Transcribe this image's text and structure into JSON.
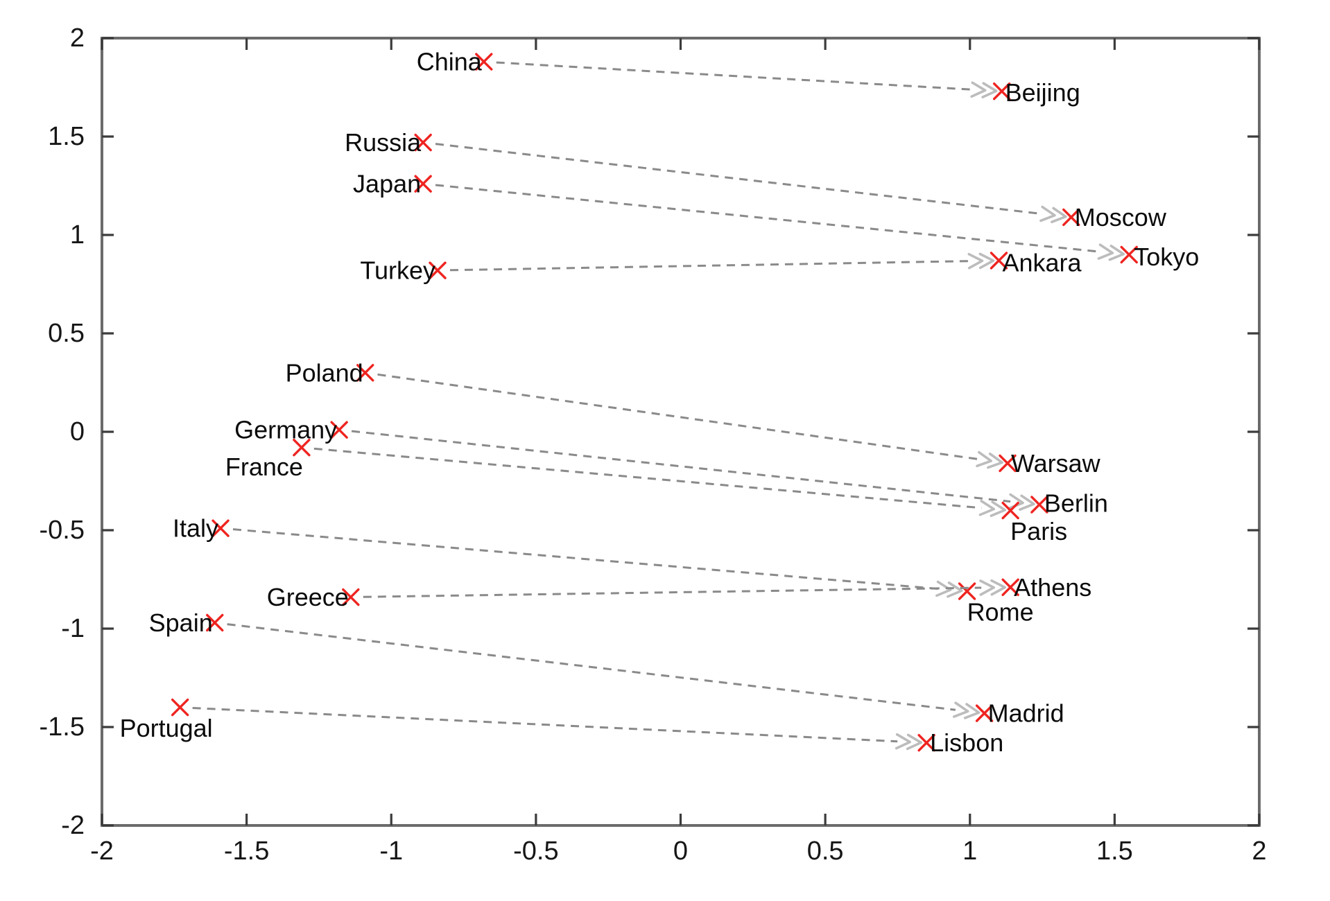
{
  "figure": {
    "description": "Scatter plot of country and capital word vectors connected by dashed arrows",
    "background_color": "#ffffff"
  },
  "chart_data": {
    "type": "scatter",
    "title": "",
    "xlabel": "",
    "ylabel": "",
    "xlim": [
      -2,
      2
    ],
    "ylim": [
      -2,
      2
    ],
    "grid": false,
    "legend": "none",
    "x_ticks": [
      {
        "value": -2,
        "label": "-2"
      },
      {
        "value": -1.5,
        "label": "-1.5"
      },
      {
        "value": -1,
        "label": "-1"
      },
      {
        "value": -0.5,
        "label": "-0.5"
      },
      {
        "value": 0,
        "label": "0"
      },
      {
        "value": 0.5,
        "label": "0.5"
      },
      {
        "value": 1,
        "label": "1"
      },
      {
        "value": 1.5,
        "label": "1.5"
      },
      {
        "value": 2,
        "label": "2"
      }
    ],
    "y_ticks": [
      {
        "value": -2,
        "label": "-2"
      },
      {
        "value": -1.5,
        "label": "-1.5"
      },
      {
        "value": -1,
        "label": "-1"
      },
      {
        "value": -0.5,
        "label": "-0.5"
      },
      {
        "value": 0,
        "label": "0"
      },
      {
        "value": 0.5,
        "label": "0.5"
      },
      {
        "value": 1,
        "label": "1"
      },
      {
        "value": 1.5,
        "label": "1.5"
      },
      {
        "value": 2,
        "label": "2"
      }
    ],
    "pairs": [
      {
        "country": "China",
        "country_xy": [
          -0.68,
          1.88
        ],
        "country_anchor": "end",
        "country_offset": [
          -3,
          0
        ],
        "capital": "Beijing",
        "capital_xy": [
          1.11,
          1.73
        ],
        "capital_anchor": "start",
        "capital_offset": [
          5,
          2
        ]
      },
      {
        "country": "Russia",
        "country_xy": [
          -0.89,
          1.47
        ],
        "country_anchor": "end",
        "country_offset": [
          -3,
          0
        ],
        "capital": "Moscow",
        "capital_xy": [
          1.35,
          1.09
        ],
        "capital_anchor": "start",
        "capital_offset": [
          5,
          0
        ]
      },
      {
        "country": "Japan",
        "country_xy": [
          -0.89,
          1.26
        ],
        "country_anchor": "end",
        "country_offset": [
          -3,
          0
        ],
        "capital": "Tokyo",
        "capital_xy": [
          1.55,
          0.9
        ],
        "capital_anchor": "start",
        "capital_offset": [
          7,
          3
        ]
      },
      {
        "country": "Turkey",
        "country_xy": [
          -0.84,
          0.82
        ],
        "country_anchor": "end",
        "country_offset": [
          -3,
          0
        ],
        "capital": "Ankara",
        "capital_xy": [
          1.1,
          0.87
        ],
        "capital_anchor": "start",
        "capital_offset": [
          5,
          3
        ]
      },
      {
        "country": "Poland",
        "country_xy": [
          -1.09,
          0.3
        ],
        "country_anchor": "end",
        "country_offset": [
          -3,
          0
        ],
        "capital": "Warsaw",
        "capital_xy": [
          1.13,
          -0.16
        ],
        "capital_anchor": "start",
        "capital_offset": [
          5,
          0
        ]
      },
      {
        "country": "Germany",
        "country_xy": [
          -1.18,
          0.01
        ],
        "country_anchor": "end",
        "country_offset": [
          -3,
          0
        ],
        "capital": "Berlin",
        "capital_xy": [
          1.24,
          -0.37
        ],
        "capital_anchor": "start",
        "capital_offset": [
          7,
          -2
        ]
      },
      {
        "country": "France",
        "country_xy": [
          -1.31,
          -0.08
        ],
        "country_anchor": "end",
        "country_offset": [
          2,
          28
        ],
        "capital": "Paris",
        "capital_xy": [
          1.14,
          -0.4
        ],
        "capital_anchor": "start",
        "capital_offset": [
          0,
          30
        ]
      },
      {
        "country": "Italy",
        "country_xy": [
          -1.59,
          -0.49
        ],
        "country_anchor": "end",
        "country_offset": [
          -3,
          0
        ],
        "capital": "Rome",
        "capital_xy": [
          0.99,
          -0.81
        ],
        "capital_anchor": "start",
        "capital_offset": [
          0,
          30
        ]
      },
      {
        "country": "Greece",
        "country_xy": [
          -1.14,
          -0.84
        ],
        "country_anchor": "end",
        "country_offset": [
          -3,
          0
        ],
        "capital": "Athens",
        "capital_xy": [
          1.14,
          -0.79
        ],
        "capital_anchor": "start",
        "capital_offset": [
          5,
          0
        ]
      },
      {
        "country": "Spain",
        "country_xy": [
          -1.61,
          -0.97
        ],
        "country_anchor": "end",
        "country_offset": [
          -3,
          0
        ],
        "capital": "Madrid",
        "capital_xy": [
          1.05,
          -1.43
        ],
        "capital_anchor": "start",
        "capital_offset": [
          5,
          0
        ]
      },
      {
        "country": "Portugal",
        "country_xy": [
          -1.73,
          -1.4
        ],
        "country_anchor": "end",
        "country_offset": [
          47,
          30
        ],
        "capital": "Lisbon",
        "capital_xy": [
          0.85,
          -1.58
        ],
        "capital_anchor": "start",
        "capital_offset": [
          5,
          0
        ]
      }
    ],
    "style": {
      "marker_shape": "x",
      "marker_color": "#ee2420",
      "arrow_line_color": "#8a8a8a",
      "arrow_head_color": "#bcbcbc",
      "frame_color": "#6b6b6b",
      "tick_color": "#3c3c3c",
      "tick_label_color": "#161616",
      "point_label_color": "#0b0b0b"
    }
  }
}
